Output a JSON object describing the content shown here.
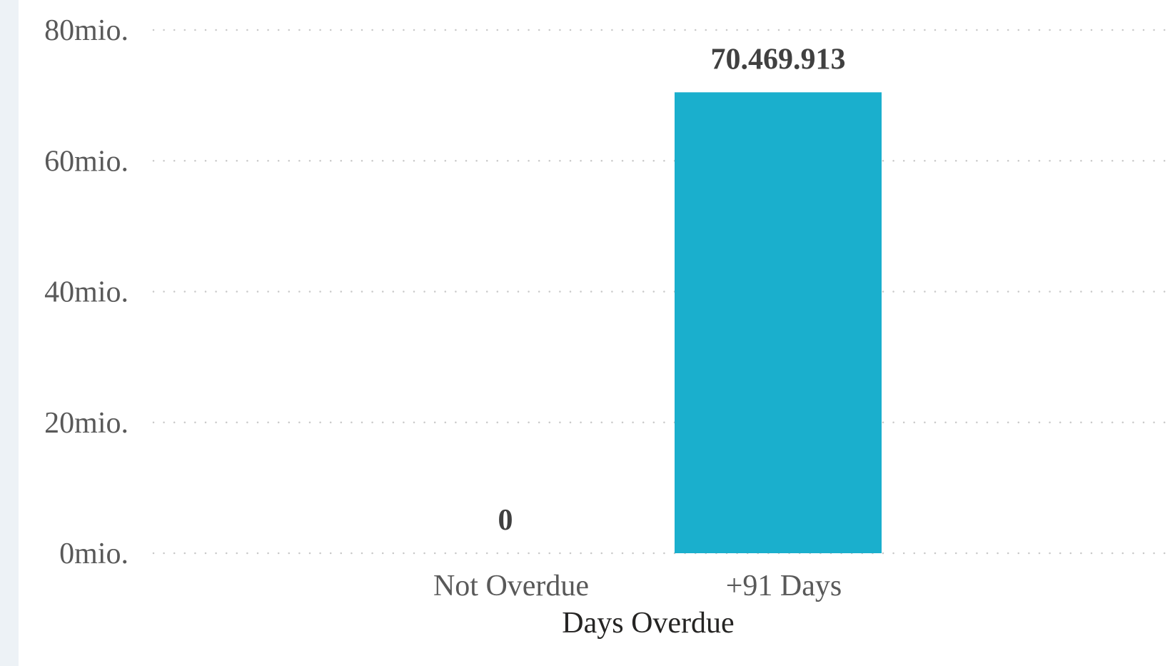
{
  "chart_data": {
    "type": "bar",
    "categories": [
      "Not Overdue",
      "+91 Days"
    ],
    "values": [
      0,
      70469913
    ],
    "data_labels": [
      "0",
      "70.469.913"
    ],
    "xlabel": "Days Overdue",
    "ylabel": "",
    "ylim": [
      0,
      80000000
    ],
    "y_ticks": [
      {
        "value": 0,
        "label": "0mio."
      },
      {
        "value": 20000000,
        "label": "20mio."
      },
      {
        "value": 40000000,
        "label": "40mio."
      },
      {
        "value": 60000000,
        "label": "60mio."
      },
      {
        "value": 80000000,
        "label": "80mio."
      }
    ],
    "grid": true,
    "grid_style": "dotted",
    "bar_color": "#1aafcd",
    "grid_color": "#c8c8c8"
  }
}
